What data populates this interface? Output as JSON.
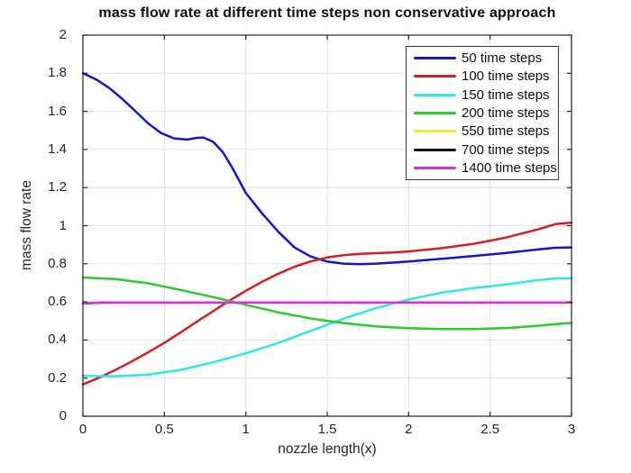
{
  "figure": {
    "title": "mass flow rate at different time steps non conservative approach",
    "xlabel": "nozzle length(x)",
    "ylabel": "mass flow rate"
  },
  "chart_data": {
    "type": "line",
    "title": "mass flow rate at different time steps non conservative approach",
    "xlabel": "nozzle length(x)",
    "ylabel": "mass flow rate",
    "xlim": [
      0,
      3
    ],
    "ylim": [
      0,
      2
    ],
    "xticks": [
      0,
      0.5,
      1,
      1.5,
      2,
      2.5,
      3
    ],
    "xticklabels": [
      "0",
      "0.5",
      "1",
      "1.5",
      "2",
      "2.5",
      "3"
    ],
    "yticks": [
      0,
      0.2,
      0.4,
      0.6,
      0.8,
      1,
      1.2,
      1.4,
      1.6,
      1.8,
      2
    ],
    "yticklabels": [
      "0",
      "0.2",
      "0.4",
      "0.6",
      "0.8",
      "1",
      "1.2",
      "1.4",
      "1.6",
      "1.8",
      "2"
    ],
    "grid": true,
    "grid_color": "#e0e0e0",
    "axis_color": "#262626",
    "legend_position": "top-right",
    "line_width": 2.5,
    "series": [
      {
        "name": "50 time steps",
        "color": "#1515cd",
        "x": [
          0,
          0.08,
          0.16,
          0.24,
          0.32,
          0.4,
          0.48,
          0.56,
          0.64,
          0.7,
          0.74,
          0.8,
          0.86,
          0.92,
          1.0,
          1.1,
          1.2,
          1.3,
          1.4,
          1.5,
          1.6,
          1.7,
          1.8,
          1.9,
          2.0,
          2.2,
          2.4,
          2.6,
          2.8,
          2.9,
          3.0
        ],
        "y": [
          1.8,
          1.768,
          1.724,
          1.666,
          1.603,
          1.537,
          1.486,
          1.458,
          1.452,
          1.461,
          1.463,
          1.44,
          1.385,
          1.3,
          1.172,
          1.065,
          0.968,
          0.885,
          0.838,
          0.812,
          0.801,
          0.798,
          0.801,
          0.806,
          0.812,
          0.826,
          0.841,
          0.857,
          0.876,
          0.884,
          0.886
        ]
      },
      {
        "name": "100 time steps",
        "color": "#d52020",
        "x": [
          0,
          0.1,
          0.2,
          0.3,
          0.4,
          0.5,
          0.6,
          0.7,
          0.8,
          0.9,
          1.0,
          1.1,
          1.2,
          1.3,
          1.4,
          1.5,
          1.6,
          1.7,
          1.8,
          1.9,
          2.0,
          2.2,
          2.4,
          2.6,
          2.8,
          2.9,
          3.0
        ],
        "y": [
          0.167,
          0.203,
          0.243,
          0.288,
          0.335,
          0.385,
          0.44,
          0.497,
          0.552,
          0.607,
          0.658,
          0.706,
          0.748,
          0.785,
          0.813,
          0.833,
          0.845,
          0.852,
          0.856,
          0.859,
          0.865,
          0.882,
          0.905,
          0.938,
          0.982,
          1.008,
          1.016
        ]
      },
      {
        "name": "150 time steps",
        "color": "#33e6e6",
        "x": [
          0,
          0.2,
          0.4,
          0.6,
          0.8,
          1.0,
          1.2,
          1.4,
          1.6,
          1.8,
          2.0,
          2.2,
          2.4,
          2.6,
          2.8,
          2.9,
          3.0
        ],
        "y": [
          0.212,
          0.21,
          0.218,
          0.243,
          0.283,
          0.33,
          0.385,
          0.448,
          0.512,
          0.568,
          0.613,
          0.648,
          0.673,
          0.692,
          0.715,
          0.723,
          0.725
        ]
      },
      {
        "name": "200 time steps",
        "color": "#2bcc2b",
        "x": [
          0,
          0.2,
          0.4,
          0.6,
          0.8,
          1.0,
          1.2,
          1.4,
          1.6,
          1.8,
          2.0,
          2.2,
          2.4,
          2.6,
          2.8,
          2.9,
          3.0
        ],
        "y": [
          0.728,
          0.72,
          0.698,
          0.663,
          0.625,
          0.585,
          0.545,
          0.513,
          0.489,
          0.472,
          0.462,
          0.457,
          0.457,
          0.463,
          0.475,
          0.483,
          0.49
        ]
      },
      {
        "name": "550 time steps",
        "color": "#eded32",
        "x": [
          0,
          0.15,
          1.0,
          2.0,
          3.0
        ],
        "y": [
          0.592,
          0.597,
          0.597,
          0.597,
          0.597
        ]
      },
      {
        "name": "700 time steps",
        "color": "#121212",
        "x": [
          0,
          0.15,
          1.0,
          2.0,
          3.0
        ],
        "y": [
          0.592,
          0.597,
          0.597,
          0.597,
          0.597
        ]
      },
      {
        "name": "1400 time steps",
        "color": "#e628e6",
        "x": [
          0,
          0.15,
          1.0,
          2.0,
          3.0
        ],
        "y": [
          0.592,
          0.597,
          0.597,
          0.597,
          0.597
        ]
      }
    ]
  }
}
